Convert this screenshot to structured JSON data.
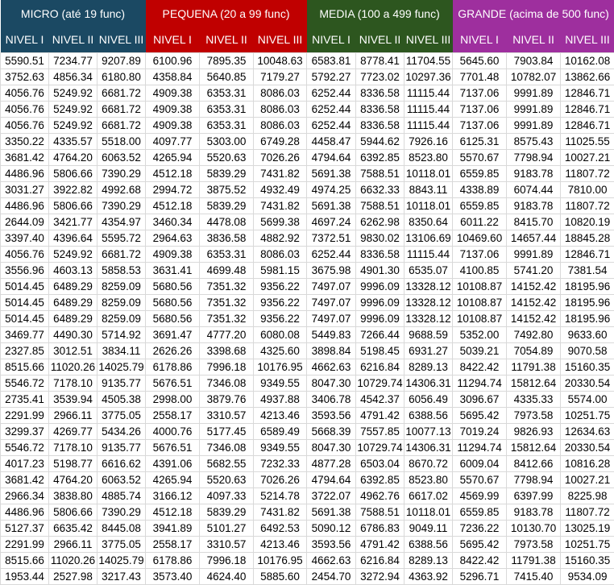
{
  "groups": [
    {
      "label": "MICRO (até 19 func)",
      "color": "#1b4963"
    },
    {
      "label": "PEQUENA (20 a 99 func)",
      "color": "#c00000"
    },
    {
      "label": "MEDIA (100 a 499 func)",
      "color": "#2d561f"
    },
    {
      "label": "GRANDE (acima de 500 func)",
      "color": "#9e2f9e"
    }
  ],
  "levels": [
    "NIVEL I",
    "NIVEL II",
    "NIVEL III"
  ],
  "rows": [
    [
      "5590.51",
      "7234.77",
      "9207.89",
      "6100.96",
      "7895.35",
      "10048.63",
      "6583.81",
      "8778.41",
      "11704.55",
      "5645.60",
      "7903.84",
      "10162.08"
    ],
    [
      "3752.63",
      "4856.34",
      "6180.80",
      "4358.84",
      "5640.85",
      "7179.27",
      "5792.27",
      "7723.02",
      "10297.36",
      "7701.48",
      "10782.07",
      "13862.66"
    ],
    [
      "4056.76",
      "5249.92",
      "6681.72",
      "4909.38",
      "6353.31",
      "8086.03",
      "6252.44",
      "8336.58",
      "11115.44",
      "7137.06",
      "9991.89",
      "12846.71"
    ],
    [
      "4056.76",
      "5249.92",
      "6681.72",
      "4909.38",
      "6353.31",
      "8086.03",
      "6252.44",
      "8336.58",
      "11115.44",
      "7137.06",
      "9991.89",
      "12846.71"
    ],
    [
      "4056.76",
      "5249.92",
      "6681.72",
      "4909.38",
      "6353.31",
      "8086.03",
      "6252.44",
      "8336.58",
      "11115.44",
      "7137.06",
      "9991.89",
      "12846.71"
    ],
    [
      "3350.22",
      "4335.57",
      "5518.00",
      "4097.77",
      "5303.00",
      "6749.28",
      "4458.47",
      "5944.62",
      "7926.16",
      "6125.31",
      "8575.43",
      "11025.55"
    ],
    [
      "3681.42",
      "4764.20",
      "6063.52",
      "4265.94",
      "5520.63",
      "7026.26",
      "4794.64",
      "6392.85",
      "8523.80",
      "5570.67",
      "7798.94",
      "10027.21"
    ],
    [
      "4486.96",
      "5806.66",
      "7390.29",
      "4512.18",
      "5839.29",
      "7431.82",
      "5691.38",
      "7588.51",
      "10118.01",
      "6559.85",
      "9183.78",
      "11807.72"
    ],
    [
      "3031.27",
      "3922.82",
      "4992.68",
      "2994.72",
      "3875.52",
      "4932.49",
      "4974.25",
      "6632.33",
      "8843.11",
      "4338.89",
      "6074.44",
      "7810.00"
    ],
    [
      "4486.96",
      "5806.66",
      "7390.29",
      "4512.18",
      "5839.29",
      "7431.82",
      "5691.38",
      "7588.51",
      "10118.01",
      "6559.85",
      "9183.78",
      "11807.72"
    ],
    [
      "2644.09",
      "3421.77",
      "4354.97",
      "3460.34",
      "4478.08",
      "5699.38",
      "4697.24",
      "6262.98",
      "8350.64",
      "6011.22",
      "8415.70",
      "10820.19"
    ],
    [
      "3397.40",
      "4396.64",
      "5595.72",
      "2964.63",
      "3836.58",
      "4882.92",
      "7372.51",
      "9830.02",
      "13106.69",
      "10469.60",
      "14657.44",
      "18845.28"
    ],
    [
      "4056.76",
      "5249.92",
      "6681.72",
      "4909.38",
      "6353.31",
      "8086.03",
      "6252.44",
      "8336.58",
      "11115.44",
      "7137.06",
      "9991.89",
      "12846.71"
    ],
    [
      "3556.96",
      "4603.13",
      "5858.53",
      "3631.41",
      "4699.48",
      "5981.15",
      "3675.98",
      "4901.30",
      "6535.07",
      "4100.85",
      "5741.20",
      "7381.54"
    ],
    [
      "5014.45",
      "6489.29",
      "8259.09",
      "5680.56",
      "7351.32",
      "9356.22",
      "7497.07",
      "9996.09",
      "13328.12",
      "10108.87",
      "14152.42",
      "18195.96"
    ],
    [
      "5014.45",
      "6489.29",
      "8259.09",
      "5680.56",
      "7351.32",
      "9356.22",
      "7497.07",
      "9996.09",
      "13328.12",
      "10108.87",
      "14152.42",
      "18195.96"
    ],
    [
      "5014.45",
      "6489.29",
      "8259.09",
      "5680.56",
      "7351.32",
      "9356.22",
      "7497.07",
      "9996.09",
      "13328.12",
      "10108.87",
      "14152.42",
      "18195.96"
    ],
    [
      "3469.77",
      "4490.30",
      "5714.92",
      "3691.47",
      "4777.20",
      "6080.08",
      "5449.83",
      "7266.44",
      "9688.59",
      "5352.00",
      "7492.80",
      "9633.60"
    ],
    [
      "2327.85",
      "3012.51",
      "3834.11",
      "2626.26",
      "3398.68",
      "4325.60",
      "3898.84",
      "5198.45",
      "6931.27",
      "5039.21",
      "7054.89",
      "9070.58"
    ],
    [
      "8515.66",
      "11020.26",
      "14025.79",
      "6178.86",
      "7996.18",
      "10176.95",
      "4662.63",
      "6216.84",
      "8289.13",
      "8422.42",
      "11791.38",
      "15160.35"
    ],
    [
      "5546.72",
      "7178.10",
      "9135.77",
      "5676.51",
      "7346.08",
      "9349.55",
      "8047.30",
      "10729.74",
      "14306.31",
      "11294.74",
      "15812.64",
      "20330.54"
    ],
    [
      "2735.41",
      "3539.94",
      "4505.38",
      "2998.00",
      "3879.76",
      "4937.88",
      "3406.78",
      "4542.37",
      "6056.49",
      "3096.67",
      "4335.33",
      "5574.00"
    ],
    [
      "2291.99",
      "2966.11",
      "3775.05",
      "2558.17",
      "3310.57",
      "4213.46",
      "3593.56",
      "4791.42",
      "6388.56",
      "5695.42",
      "7973.58",
      "10251.75"
    ],
    [
      "3299.37",
      "4269.77",
      "5434.26",
      "4000.76",
      "5177.45",
      "6589.49",
      "5668.39",
      "7557.85",
      "10077.13",
      "7019.24",
      "9826.93",
      "12634.63"
    ],
    [
      "5546.72",
      "7178.10",
      "9135.77",
      "5676.51",
      "7346.08",
      "9349.55",
      "8047.30",
      "10729.74",
      "14306.31",
      "11294.74",
      "15812.64",
      "20330.54"
    ],
    [
      "4017.23",
      "5198.77",
      "6616.62",
      "4391.06",
      "5682.55",
      "7232.33",
      "4877.28",
      "6503.04",
      "8670.72",
      "6009.04",
      "8412.66",
      "10816.28"
    ],
    [
      "3681.42",
      "4764.20",
      "6063.52",
      "4265.94",
      "5520.63",
      "7026.26",
      "4794.64",
      "6392.85",
      "8523.80",
      "5570.67",
      "7798.94",
      "10027.21"
    ],
    [
      "2966.34",
      "3838.80",
      "4885.74",
      "3166.12",
      "4097.33",
      "5214.78",
      "3722.07",
      "4962.76",
      "6617.02",
      "4569.99",
      "6397.99",
      "8225.98"
    ],
    [
      "4486.96",
      "5806.66",
      "7390.29",
      "4512.18",
      "5839.29",
      "7431.82",
      "5691.38",
      "7588.51",
      "10118.01",
      "6559.85",
      "9183.78",
      "11807.72"
    ],
    [
      "5127.37",
      "6635.42",
      "8445.08",
      "3941.89",
      "5101.27",
      "6492.53",
      "5090.12",
      "6786.83",
      "9049.11",
      "7236.22",
      "10130.70",
      "13025.19"
    ],
    [
      "2291.99",
      "2966.11",
      "3775.05",
      "2558.17",
      "3310.57",
      "4213.46",
      "3593.56",
      "4791.42",
      "6388.56",
      "5695.42",
      "7973.58",
      "10251.75"
    ],
    [
      "8515.66",
      "11020.26",
      "14025.79",
      "6178.86",
      "7996.18",
      "10176.95",
      "4662.63",
      "6216.84",
      "8289.13",
      "8422.42",
      "11791.38",
      "15160.35"
    ],
    [
      "1953.44",
      "2527.98",
      "3217.43",
      "3573.40",
      "4624.40",
      "5885.60",
      "2454.70",
      "3272.94",
      "4363.92",
      "5296.71",
      "7415.40",
      "9534.09"
    ]
  ]
}
